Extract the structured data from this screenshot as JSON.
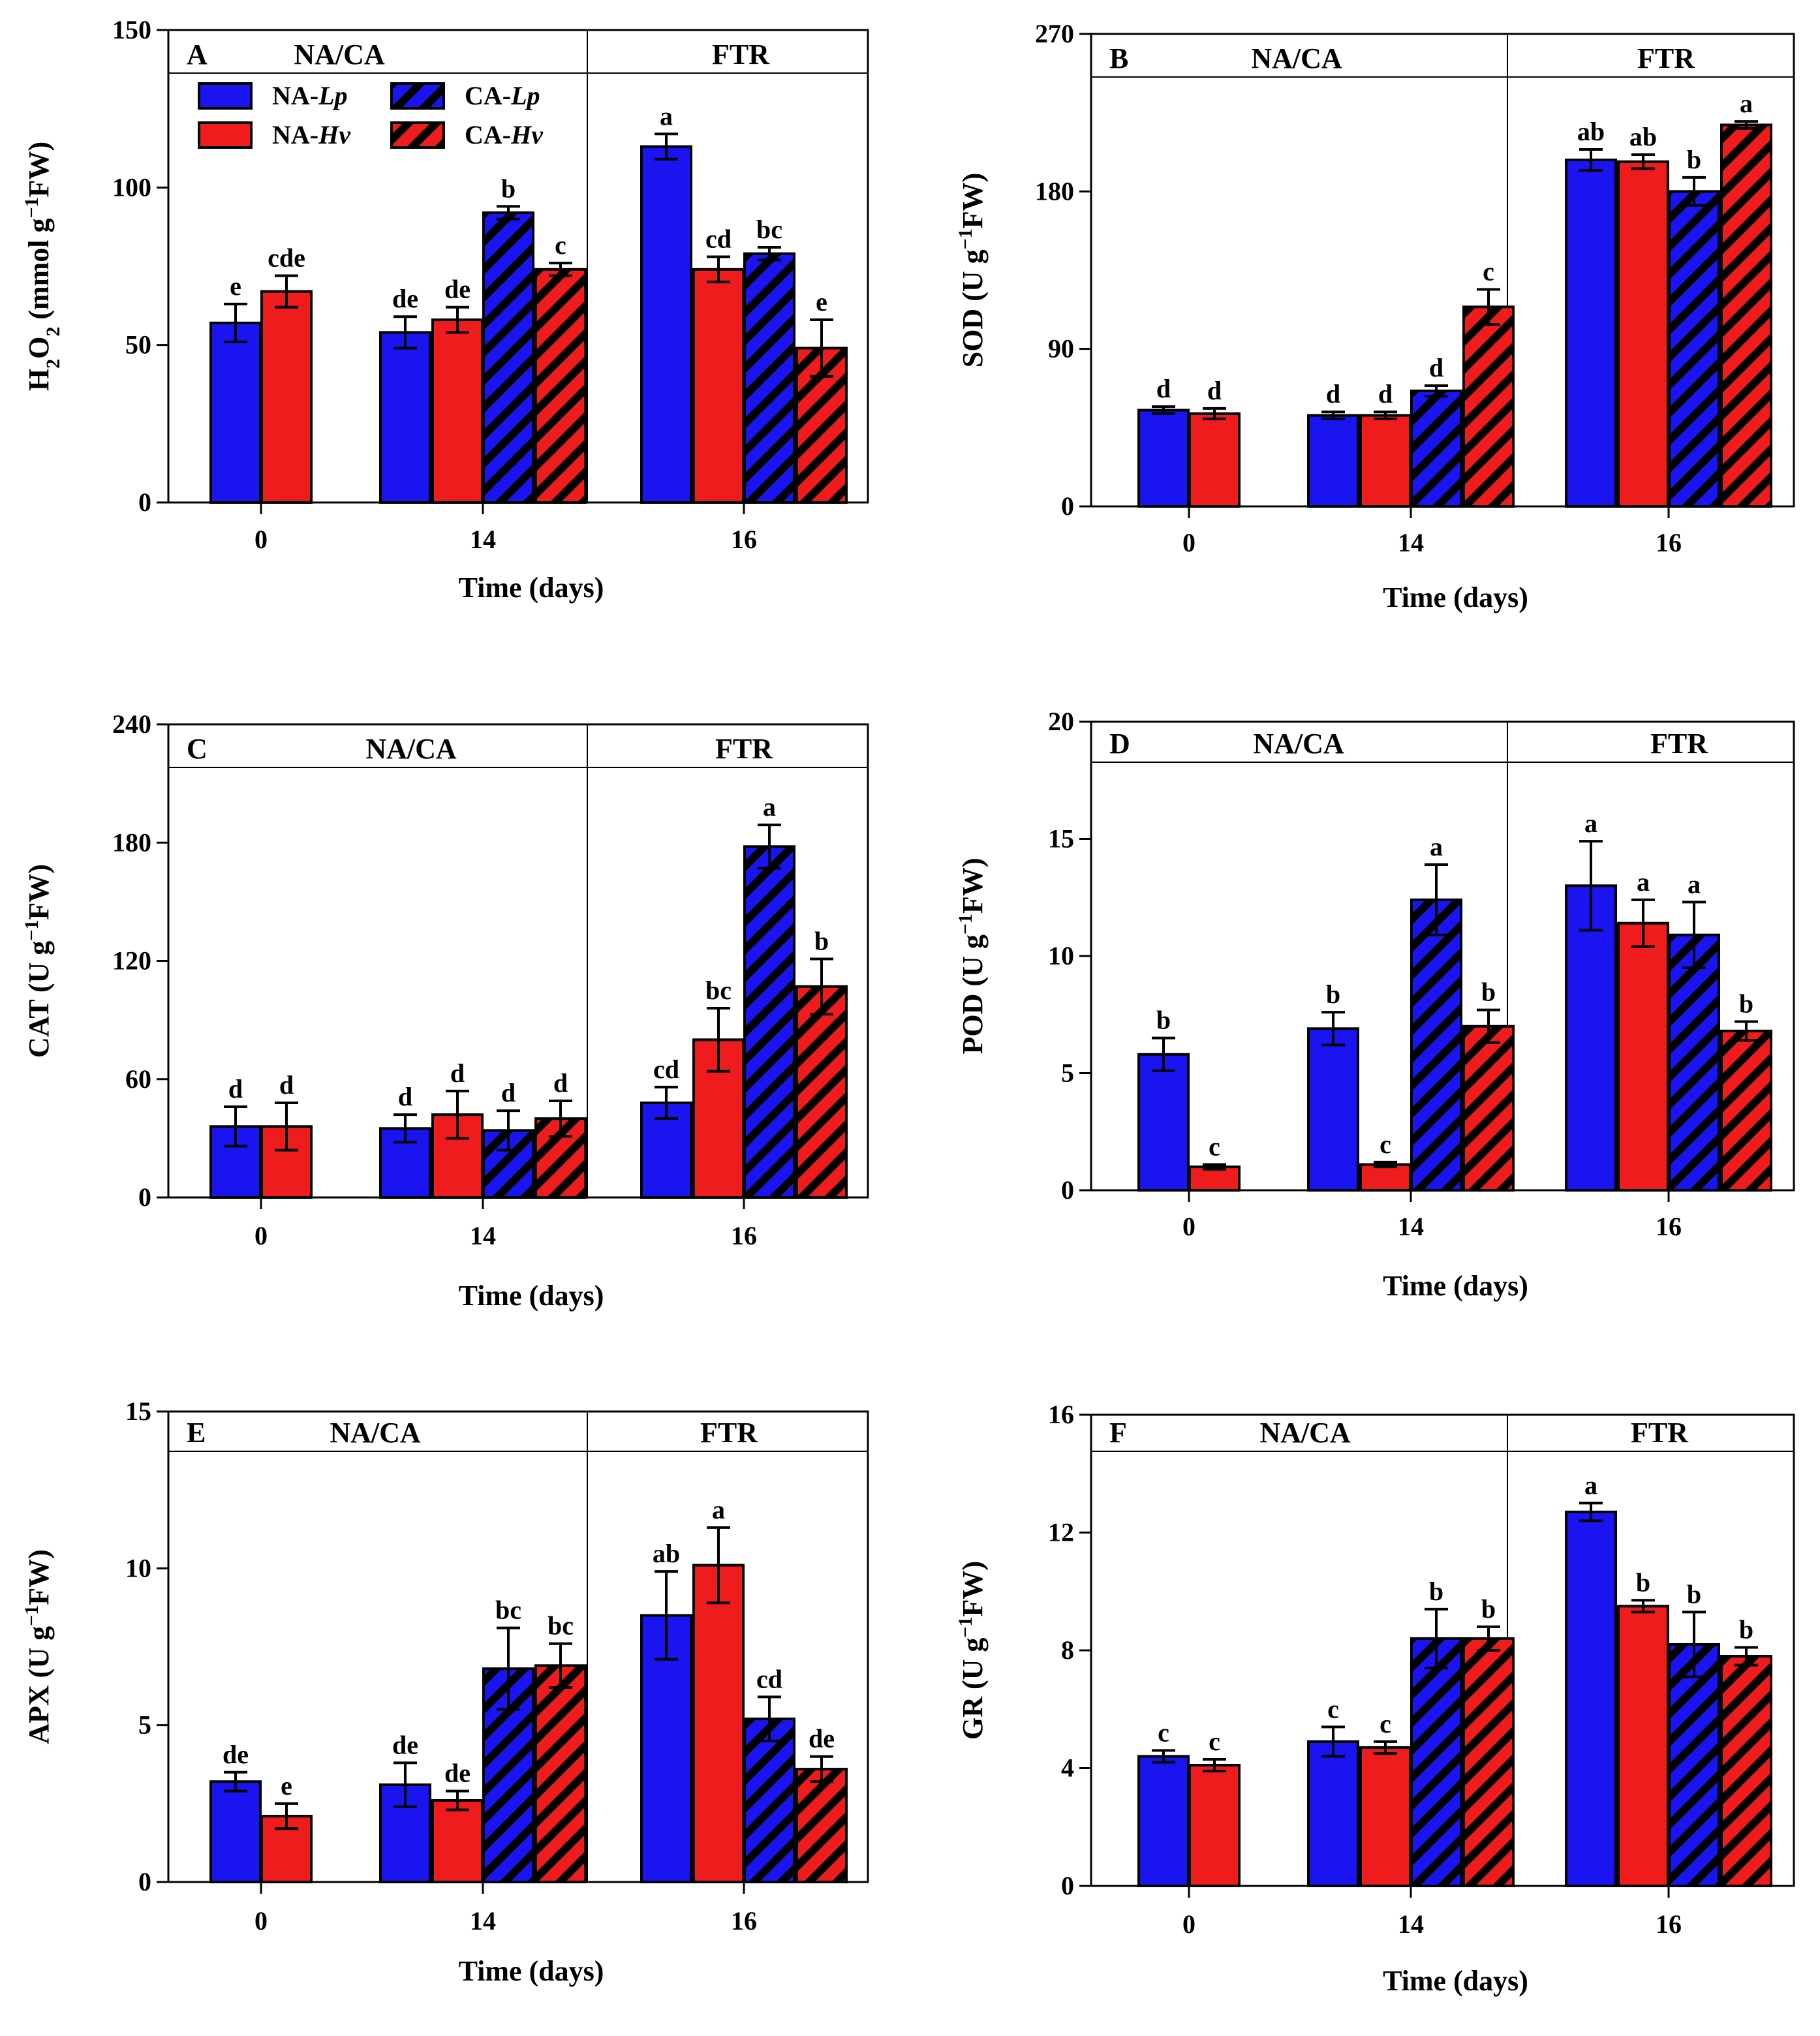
{
  "legend": [
    {
      "name_main": "NA-",
      "name_sub": "Lp",
      "color": "#1a14f0",
      "hatch": false
    },
    {
      "name_main": "NA-",
      "name_sub": "Hv",
      "color": "#ee1c1c",
      "hatch": false
    },
    {
      "name_main": "CA-",
      "name_sub": "Lp",
      "color": "#1a14f0",
      "hatch": true
    },
    {
      "name_main": "CA-",
      "name_sub": "Hv",
      "color": "#ee1c1c",
      "hatch": true
    }
  ],
  "colors": {
    "lp": "#1a14f0",
    "hv": "#ee1c1c",
    "axis": "#000000"
  },
  "chart_data": [
    {
      "type": "bar",
      "panel": "A",
      "regions": [
        "NA/CA",
        "FTR"
      ],
      "ylabel_main": "H",
      "ylabel_sub1": "2",
      "ylabel_mid": "O",
      "ylabel_sub2": "2",
      "ylabel_rest": " (mmol g",
      "ylabel_sup": "−1",
      "ylabel_end": "FW)",
      "xlabel": "Time (days)",
      "ylim": [
        0,
        150
      ],
      "yticks": [
        0,
        50,
        100,
        150
      ],
      "categories": [
        "0",
        "14",
        "16"
      ],
      "series": [
        {
          "name": "NA-Lp",
          "values": [
            57,
            54,
            113
          ],
          "errors": [
            6,
            5,
            4
          ],
          "letters": [
            "e",
            "de",
            "a"
          ]
        },
        {
          "name": "NA-Hv",
          "values": [
            67,
            58,
            74
          ],
          "errors": [
            5,
            4,
            4
          ],
          "letters": [
            "cde",
            "de",
            "cd"
          ]
        },
        {
          "name": "CA-Lp",
          "values": [
            null,
            92,
            79
          ],
          "errors": [
            null,
            2,
            2
          ],
          "letters": [
            null,
            "b",
            "bc"
          ]
        },
        {
          "name": "CA-Hv",
          "values": [
            null,
            74,
            49
          ],
          "errors": [
            null,
            2,
            9
          ],
          "letters": [
            null,
            "c",
            "e"
          ]
        }
      ]
    },
    {
      "type": "bar",
      "panel": "B",
      "regions": [
        "NA/CA",
        "FTR"
      ],
      "ylabel_main": "SOD (U g",
      "ylabel_sup": "−1",
      "ylabel_end": "FW)",
      "xlabel": "Time (days)",
      "ylim": [
        0,
        270
      ],
      "yticks": [
        0,
        90,
        180,
        270
      ],
      "categories": [
        "0",
        "14",
        "16"
      ],
      "series": [
        {
          "name": "NA-Lp",
          "values": [
            55,
            52,
            198
          ],
          "errors": [
            2,
            2,
            6
          ],
          "letters": [
            "d",
            "d",
            "ab"
          ]
        },
        {
          "name": "NA-Hv",
          "values": [
            53,
            52,
            197
          ],
          "errors": [
            3,
            2,
            4
          ],
          "letters": [
            "d",
            "d",
            "ab"
          ]
        },
        {
          "name": "CA-Lp",
          "values": [
            null,
            66,
            180
          ],
          "errors": [
            null,
            3,
            8
          ],
          "letters": [
            null,
            "d",
            "b"
          ]
        },
        {
          "name": "CA-Hv",
          "values": [
            null,
            114,
            218
          ],
          "errors": [
            null,
            10,
            2
          ],
          "letters": [
            null,
            "c",
            "a"
          ]
        }
      ]
    },
    {
      "type": "bar",
      "panel": "C",
      "regions": [
        "NA/CA",
        "FTR"
      ],
      "ylabel_main": "CAT (U g",
      "ylabel_sup": "−1",
      "ylabel_end": "FW)",
      "xlabel": "Time (days)",
      "ylim": [
        0,
        240
      ],
      "yticks": [
        0,
        60,
        120,
        180,
        240
      ],
      "categories": [
        "0",
        "14",
        "16"
      ],
      "series": [
        {
          "name": "NA-Lp",
          "values": [
            36,
            35,
            48
          ],
          "errors": [
            10,
            7,
            8
          ],
          "letters": [
            "d",
            "d",
            "cd"
          ]
        },
        {
          "name": "NA-Hv",
          "values": [
            36,
            42,
            80
          ],
          "errors": [
            12,
            12,
            16
          ],
          "letters": [
            "d",
            "d",
            "bc"
          ]
        },
        {
          "name": "CA-Lp",
          "values": [
            null,
            34,
            178
          ],
          "errors": [
            null,
            10,
            11
          ],
          "letters": [
            null,
            "d",
            "a"
          ]
        },
        {
          "name": "CA-Hv",
          "values": [
            null,
            40,
            107
          ],
          "errors": [
            null,
            9,
            14
          ],
          "letters": [
            null,
            "d",
            "b"
          ]
        }
      ]
    },
    {
      "type": "bar",
      "panel": "D",
      "regions": [
        "NA/CA",
        "FTR"
      ],
      "ylabel_main": "POD (U g",
      "ylabel_sup": "−1",
      "ylabel_end": "FW)",
      "xlabel": "Time (days)",
      "ylim": [
        0,
        20
      ],
      "yticks": [
        0,
        5,
        10,
        15,
        20
      ],
      "categories": [
        "0",
        "14",
        "16"
      ],
      "series": [
        {
          "name": "NA-Lp",
          "values": [
            5.8,
            6.9,
            13.0
          ],
          "errors": [
            0.7,
            0.7,
            1.9
          ],
          "letters": [
            "b",
            "b",
            "a"
          ]
        },
        {
          "name": "NA-Hv",
          "values": [
            1.0,
            1.1,
            11.4
          ],
          "errors": [
            0.1,
            0.1,
            1.0
          ],
          "letters": [
            "c",
            "c",
            "a"
          ]
        },
        {
          "name": "CA-Lp",
          "values": [
            null,
            12.4,
            10.9
          ],
          "errors": [
            null,
            1.5,
            1.4
          ],
          "letters": [
            null,
            "a",
            "a"
          ]
        },
        {
          "name": "CA-Hv",
          "values": [
            null,
            7.0,
            6.8
          ],
          "errors": [
            null,
            0.7,
            0.4
          ],
          "letters": [
            null,
            "b",
            "b"
          ]
        }
      ]
    },
    {
      "type": "bar",
      "panel": "E",
      "regions": [
        "NA/CA",
        "FTR"
      ],
      "ylabel_main": "APX (U g",
      "ylabel_sup": "−1",
      "ylabel_end": "FW)",
      "xlabel": "Time (days)",
      "ylim": [
        0,
        15
      ],
      "yticks": [
        0,
        5,
        10,
        15
      ],
      "categories": [
        "0",
        "14",
        "16"
      ],
      "series": [
        {
          "name": "NA-Lp",
          "values": [
            3.2,
            3.1,
            8.5
          ],
          "errors": [
            0.3,
            0.7,
            1.4
          ],
          "letters": [
            "de",
            "de",
            "ab"
          ]
        },
        {
          "name": "NA-Hv",
          "values": [
            2.1,
            2.6,
            10.1
          ],
          "errors": [
            0.4,
            0.3,
            1.2
          ],
          "letters": [
            "e",
            "de",
            "a"
          ]
        },
        {
          "name": "CA-Lp",
          "values": [
            null,
            6.8,
            5.2
          ],
          "errors": [
            null,
            1.3,
            0.7
          ],
          "letters": [
            null,
            "bc",
            "cd"
          ]
        },
        {
          "name": "CA-Hv",
          "values": [
            null,
            6.9,
            3.6
          ],
          "errors": [
            null,
            0.7,
            0.4
          ],
          "letters": [
            null,
            "bc",
            "de"
          ]
        }
      ]
    },
    {
      "type": "bar",
      "panel": "F",
      "regions": [
        "NA/CA",
        "FTR"
      ],
      "ylabel_main": "GR (U g",
      "ylabel_sup": "−1",
      "ylabel_end": "FW)",
      "xlabel": "Time (days)",
      "ylim": [
        0,
        16
      ],
      "yticks": [
        0,
        4,
        8,
        12,
        16
      ],
      "categories": [
        "0",
        "14",
        "16"
      ],
      "series": [
        {
          "name": "NA-Lp",
          "values": [
            4.4,
            4.9,
            12.7
          ],
          "errors": [
            0.2,
            0.5,
            0.3
          ],
          "letters": [
            "c",
            "c",
            "a"
          ]
        },
        {
          "name": "NA-Hv",
          "values": [
            4.1,
            4.7,
            9.5
          ],
          "errors": [
            0.2,
            0.2,
            0.2
          ],
          "letters": [
            "c",
            "c",
            "b"
          ]
        },
        {
          "name": "CA-Lp",
          "values": [
            null,
            8.4,
            8.2
          ],
          "errors": [
            null,
            1.0,
            1.1
          ],
          "letters": [
            null,
            "b",
            "b"
          ]
        },
        {
          "name": "CA-Hv",
          "values": [
            null,
            8.4,
            7.8
          ],
          "errors": [
            null,
            0.4,
            0.3
          ],
          "letters": [
            null,
            "b",
            "b"
          ]
        }
      ]
    }
  ]
}
